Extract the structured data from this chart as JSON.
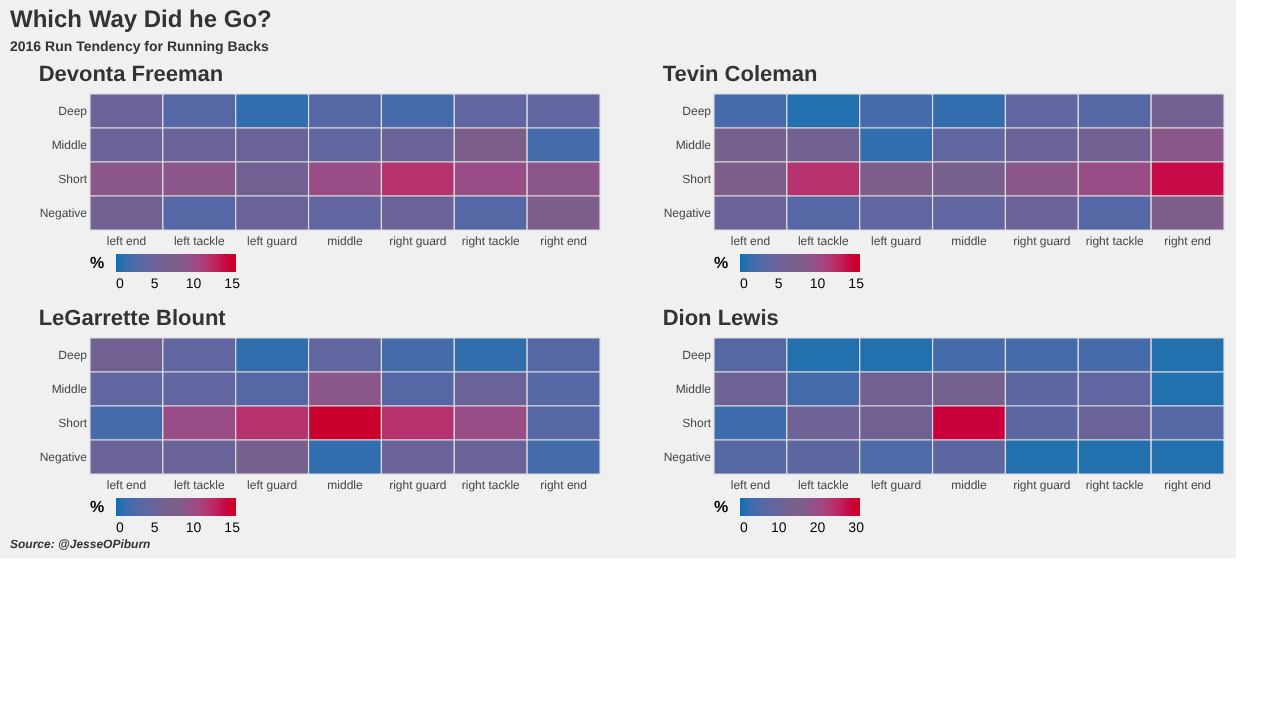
{
  "chart_data": [
    {
      "type": "heatmap",
      "title": "Devonta Freeman",
      "annotations": [
        "Which Way Did he Go?",
        "2016 Run Tendency for Running Backs"
      ],
      "clabel": "%",
      "categories": [
        "left end",
        "left tackle",
        "left guard",
        "middle",
        "right guard",
        "right tackle",
        "right end"
      ],
      "y_categories": [
        "Deep",
        "Middle",
        "Short",
        "Negative"
      ],
      "cells": [
        [
          5,
          3,
          1,
          3,
          2,
          4,
          4
        ],
        [
          5,
          5,
          5,
          4,
          5,
          8,
          2
        ],
        [
          9,
          9,
          6,
          10,
          12,
          10,
          9
        ],
        [
          6,
          3,
          5,
          4,
          5,
          3,
          8
        ]
      ],
      "clim": [
        0,
        15.5
      ],
      "cticks": [
        0,
        5,
        10,
        15
      ],
      "grid": false
    },
    {
      "type": "heatmap",
      "title": "Tevin Coleman",
      "clabel": "%",
      "categories": [
        "left end",
        "left tackle",
        "left guard",
        "middle",
        "right guard",
        "right tackle",
        "right end"
      ],
      "y_categories": [
        "Deep",
        "Middle",
        "Short",
        "Negative"
      ],
      "cells": [
        [
          2,
          0.5,
          2,
          1,
          4,
          3,
          6
        ],
        [
          7,
          6,
          1,
          4,
          5,
          6,
          9
        ],
        [
          8,
          12,
          8,
          7,
          9,
          10,
          14
        ],
        [
          5,
          3,
          4,
          4,
          5,
          3,
          8
        ]
      ],
      "clim": [
        0,
        15.5
      ],
      "cticks": [
        0,
        5,
        10,
        15
      ],
      "grid": false
    },
    {
      "type": "heatmap",
      "title": "LeGarrette Blount",
      "annotations": [
        "Source: @JesseOPiburn"
      ],
      "clabel": "%",
      "categories": [
        "left end",
        "left tackle",
        "left guard",
        "middle",
        "right guard",
        "right tackle",
        "right end"
      ],
      "y_categories": [
        "Deep",
        "Middle",
        "Short",
        "Negative"
      ],
      "cells": [
        [
          6,
          4,
          1,
          4,
          2,
          1,
          3
        ],
        [
          4,
          4,
          3,
          9,
          3,
          5,
          3
        ],
        [
          2,
          10,
          12,
          15,
          12,
          10,
          3
        ],
        [
          5,
          5,
          7,
          1,
          5,
          5,
          2
        ]
      ],
      "clim": [
        0,
        15.5
      ],
      "cticks": [
        0,
        5,
        10,
        15
      ],
      "grid": false
    },
    {
      "type": "heatmap",
      "title": "Dion Lewis",
      "clabel": "%",
      "categories": [
        "left end",
        "left tackle",
        "left guard",
        "middle",
        "right guard",
        "right tackle",
        "right end"
      ],
      "y_categories": [
        "Deep",
        "Middle",
        "Short",
        "Negative"
      ],
      "cells": [
        [
          6,
          1,
          1,
          4,
          4,
          4,
          1
        ],
        [
          11,
          4,
          12,
          13,
          7,
          8,
          1
        ],
        [
          3,
          11,
          12,
          29,
          7,
          10,
          6
        ],
        [
          6,
          7,
          5,
          7,
          1,
          1,
          1
        ]
      ],
      "clim": [
        0,
        31
      ],
      "cticks": [
        0,
        10,
        20,
        30
      ],
      "grid": false
    }
  ]
}
